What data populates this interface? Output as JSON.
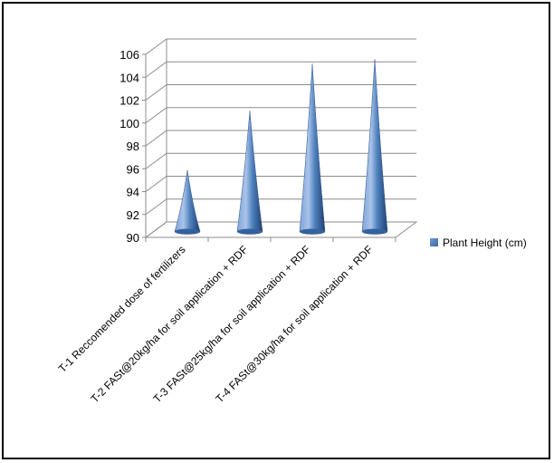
{
  "chart_data": {
    "type": "bar",
    "style": "3d-cone",
    "categories": [
      "T-1 Reccomended dose of fertilizers",
      "T-2 FASt@20kg/ha for soil application + RDF",
      "T-3 FASt@25kg/ha for soil application + RDF",
      "T-4 FASt@30kg/ha for soil application + RDF"
    ],
    "series": [
      {
        "name": "Plant Height (cm)",
        "values": [
          95.2,
          100.4,
          104.5,
          104.9
        ],
        "color": "#4f81bd"
      }
    ],
    "ylim": [
      90,
      106
    ],
    "yticks": [
      "90",
      "92",
      "94",
      "96",
      "98",
      "100",
      "102",
      "104",
      "106"
    ],
    "grid": true,
    "legend_position": "right"
  }
}
